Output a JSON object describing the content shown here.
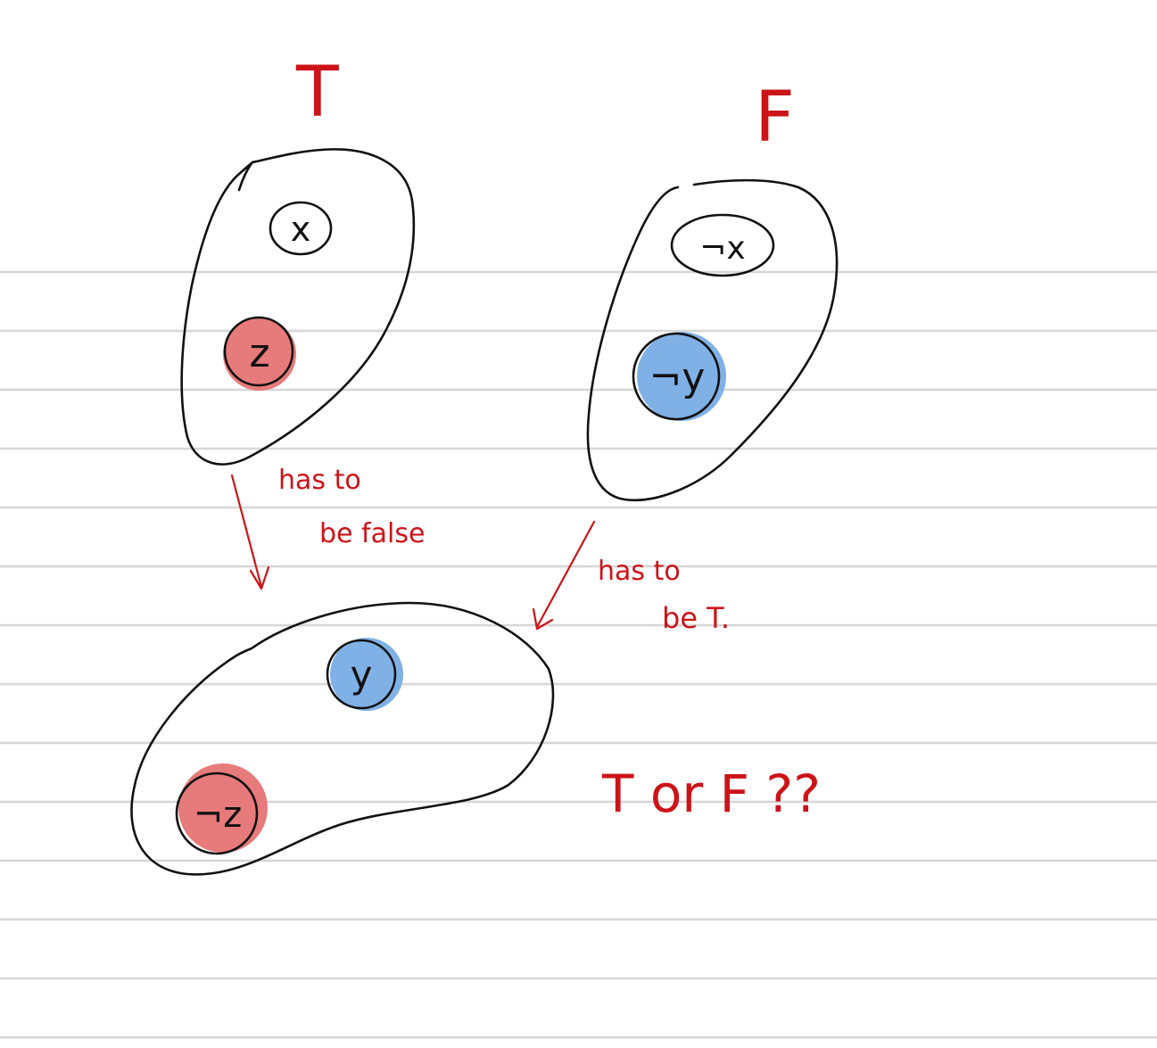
{
  "colors": {
    "ink": "#111111",
    "red_ink": "#cc1418",
    "red_fill": "#e77a7a",
    "blue_fill": "#7fb1e6",
    "rule": "#d6d6d6"
  },
  "set_true": {
    "label": "T",
    "node_x": "x",
    "node_z": "z"
  },
  "set_false": {
    "label": "F",
    "node_not_x": "¬x",
    "node_not_y": "¬y"
  },
  "set_result": {
    "node_y": "y",
    "node_not_z": "¬z"
  },
  "annotations": {
    "left_line1": "has to",
    "left_line2": "be false",
    "right_line1": "has to",
    "right_line2": "be T.",
    "question": "T or F ??"
  }
}
